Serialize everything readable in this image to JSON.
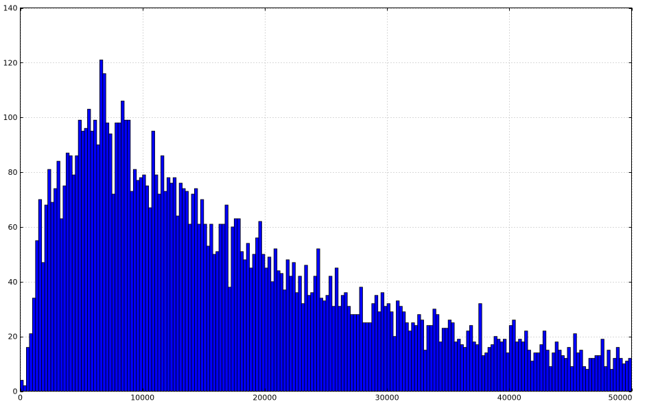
{
  "chart_data": {
    "type": "bar",
    "title": "",
    "xlabel": "",
    "ylabel": "",
    "xlim": [
      0,
      50000
    ],
    "ylim": [
      0,
      140
    ],
    "grid": true,
    "bin_width": 250,
    "x_ticks": [
      0,
      10000,
      20000,
      30000,
      40000,
      50000
    ],
    "y_ticks": [
      0,
      20,
      40,
      60,
      80,
      100,
      120,
      140
    ],
    "x_tick_labels": [
      "0",
      "10000",
      "20000",
      "30000",
      "40000",
      "50000"
    ],
    "y_tick_labels": [
      "0",
      "20",
      "40",
      "60",
      "80",
      "100",
      "120",
      "140"
    ],
    "bin_starts": [
      0,
      250,
      500,
      750,
      1000,
      1250,
      1500,
      1750,
      2000,
      2250,
      2500,
      2750,
      3000,
      3250,
      3500,
      3750,
      4000,
      4250,
      4500,
      4750,
      5000,
      5250,
      5500,
      5750,
      6000,
      6250,
      6500,
      6750,
      7000,
      7250,
      7500,
      7750,
      8000,
      8250,
      8500,
      8750,
      9000,
      9250,
      9500,
      9750,
      10000,
      10250,
      10500,
      10750,
      11000,
      11250,
      11500,
      11750,
      12000,
      12250,
      12500,
      12750,
      13000,
      13250,
      13500,
      13750,
      14000,
      14250,
      14500,
      14750,
      15000,
      15250,
      15500,
      15750,
      16000,
      16250,
      16500,
      16750,
      17000,
      17250,
      17500,
      17750,
      18000,
      18250,
      18500,
      18750,
      19000,
      19250,
      19500,
      19750,
      20000,
      20250,
      20500,
      20750,
      21000,
      21250,
      21500,
      21750,
      22000,
      22250,
      22500,
      22750,
      23000,
      23250,
      23500,
      23750,
      24000,
      24250,
      24500,
      24750,
      25000,
      25250,
      25500,
      25750,
      26000,
      26250,
      26500,
      26750,
      27000,
      27250,
      27500,
      27750,
      28000,
      28250,
      28500,
      28750,
      29000,
      29250,
      29500,
      29750,
      30000,
      30250,
      30500,
      30750,
      31000,
      31250,
      31500,
      31750,
      32000,
      32250,
      32500,
      32750,
      33000,
      33250,
      33500,
      33750,
      34000,
      34250,
      34500,
      34750,
      35000,
      35250,
      35500,
      35750,
      36000,
      36250,
      36500,
      36750,
      37000,
      37250,
      37500,
      37750,
      38000,
      38250,
      38500,
      38750,
      39000,
      39250,
      39500,
      39750,
      40000,
      40250,
      40500,
      40750,
      41000,
      41250,
      41500,
      41750,
      42000,
      42250,
      42500,
      42750,
      43000,
      43250,
      43500,
      43750,
      44000,
      44250,
      44500,
      44750,
      45000,
      45250,
      45500,
      45750,
      46000,
      46250,
      46500,
      46750,
      47000,
      47250,
      47500,
      47750,
      48000,
      48250,
      48500,
      48750,
      49000,
      49250,
      49500,
      49750
    ],
    "values": [
      4,
      2,
      16,
      21,
      34,
      55,
      70,
      47,
      68,
      81,
      69,
      74,
      84,
      63,
      75,
      87,
      86,
      79,
      86,
      99,
      95,
      96,
      103,
      95,
      99,
      90,
      121,
      116,
      98,
      94,
      72,
      98,
      98,
      106,
      99,
      99,
      73,
      81,
      77,
      78,
      79,
      75,
      67,
      95,
      79,
      72,
      86,
      73,
      78,
      76,
      78,
      64,
      76,
      74,
      73,
      61,
      72,
      74,
      61,
      70,
      61,
      53,
      61,
      50,
      51,
      61,
      61,
      68,
      38,
      60,
      63,
      63,
      51,
      48,
      54,
      45,
      50,
      56,
      62,
      50,
      45,
      49,
      40,
      52,
      44,
      43,
      37,
      48,
      42,
      47,
      36,
      42,
      32,
      46,
      35,
      36,
      42,
      52,
      34,
      33,
      35,
      42,
      31,
      45,
      31,
      35,
      36,
      31,
      28,
      28,
      28,
      38,
      25,
      25,
      25,
      32,
      35,
      29,
      36,
      31,
      32,
      29,
      20,
      33,
      31,
      29,
      25,
      22,
      25,
      24,
      28,
      26,
      15,
      24,
      24,
      30,
      28,
      18,
      23,
      23,
      26,
      25,
      18,
      19,
      17,
      16,
      22,
      24,
      18,
      17,
      32,
      13,
      14,
      16,
      17,
      20,
      19,
      18,
      19,
      14,
      24,
      26,
      18,
      19,
      18,
      22,
      15,
      11,
      14,
      14,
      17,
      22,
      15,
      9,
      14,
      18,
      15,
      13,
      12,
      16,
      9,
      21,
      14,
      15,
      9,
      8,
      12,
      12,
      13,
      13,
      19,
      9,
      15,
      8,
      12,
      16,
      12,
      10,
      11,
      12
    ]
  }
}
